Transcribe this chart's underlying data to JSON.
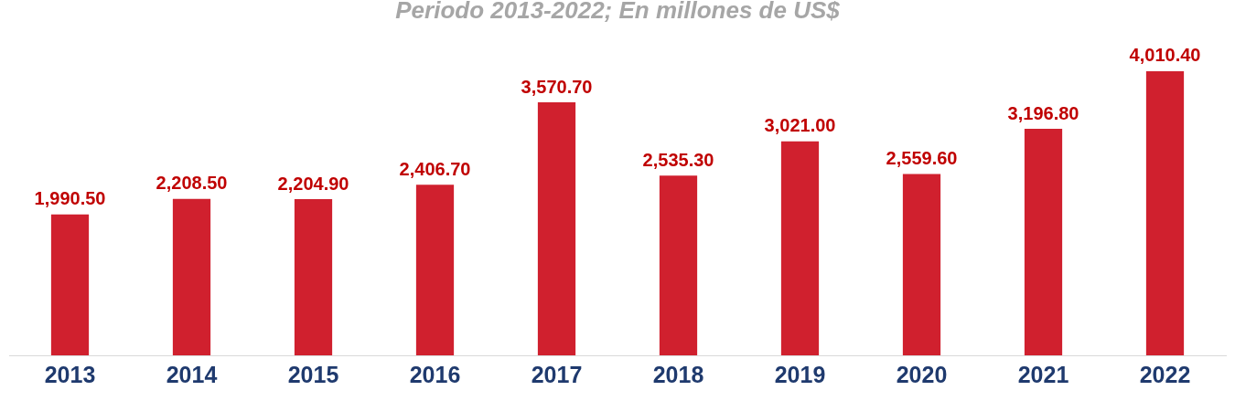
{
  "chart_data": {
    "type": "bar",
    "title": "Periodo 2013-2022; En millones de US$",
    "categories": [
      "2013",
      "2014",
      "2015",
      "2016",
      "2017",
      "2018",
      "2019",
      "2020",
      "2021",
      "2022"
    ],
    "values": [
      1990.5,
      2208.5,
      2204.9,
      2406.7,
      3570.7,
      2535.3,
      3021.0,
      2559.6,
      3196.8,
      4010.4
    ],
    "value_labels": [
      "1,990.50",
      "2,208.50",
      "2,204.90",
      "2,406.70",
      "3,570.70",
      "2,535.30",
      "3,021.00",
      "2,559.60",
      "3,196.80",
      "4,010.40"
    ],
    "color": "#d0202e",
    "grid": false,
    "legend": false
  }
}
